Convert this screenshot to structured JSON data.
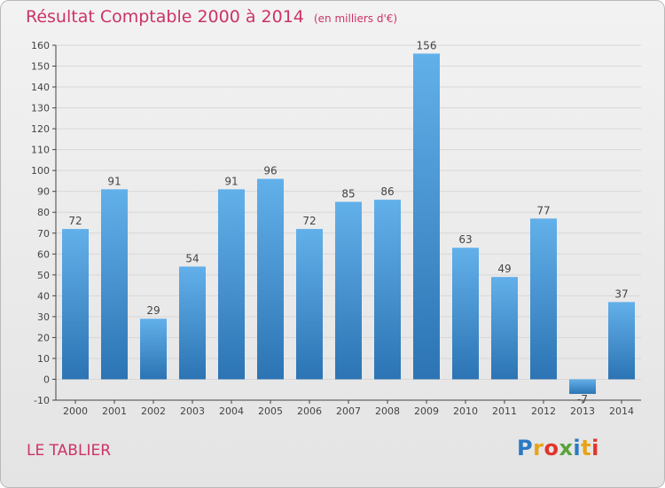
{
  "title": "Résultat Comptable 2000 à 2014",
  "title_unit": "(en milliers d'€)",
  "commune": "LE TABLIER",
  "logo": "Proxiti",
  "logo_letters": [
    {
      "ch": "P",
      "color": "#2a79c4"
    },
    {
      "ch": "r",
      "color": "#e8a317"
    },
    {
      "ch": "o",
      "color": "#e2342b"
    },
    {
      "ch": "x",
      "color": "#58a33a"
    },
    {
      "ch": "i",
      "color": "#2a79c4"
    },
    {
      "ch": "t",
      "color": "#e8a317"
    },
    {
      "ch": "i",
      "color": "#e2342b"
    }
  ],
  "colors": {
    "title": "#cc3366",
    "bar_light": "#62b0ea",
    "bar_dark": "#2c74b4",
    "axis": "#444444",
    "grid": "#d7d7d7"
  },
  "chart_data": {
    "type": "bar",
    "categories": [
      "2000",
      "2001",
      "2002",
      "2003",
      "2004",
      "2005",
      "2006",
      "2007",
      "2008",
      "2009",
      "2010",
      "2011",
      "2012",
      "2013",
      "2014"
    ],
    "values": [
      72,
      91,
      29,
      54,
      91,
      96,
      72,
      85,
      86,
      156,
      63,
      49,
      77,
      -7,
      37
    ],
    "ylim": [
      -10,
      160
    ],
    "yticks": [
      -10,
      0,
      10,
      20,
      30,
      40,
      50,
      60,
      70,
      80,
      90,
      100,
      110,
      120,
      130,
      140,
      150,
      160
    ],
    "grid": true,
    "data_labels": true,
    "legend": "none"
  }
}
